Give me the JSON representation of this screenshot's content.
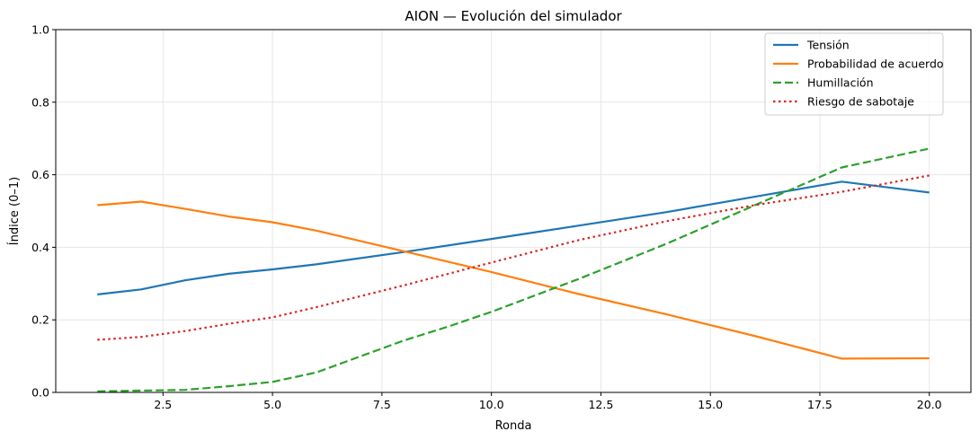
{
  "chart_data": {
    "type": "line",
    "title": "AION — Evolución del simulador",
    "xlabel": "Ronda",
    "ylabel": "Índice (0–1)",
    "xlim": [
      0.05,
      20.95
    ],
    "ylim": [
      0.0,
      1.0
    ],
    "grid": true,
    "legend_position": "top-right",
    "x_ticks": [
      2.5,
      5.0,
      7.5,
      10.0,
      12.5,
      15.0,
      17.5,
      20.0
    ],
    "x_tick_labels": [
      "2.5",
      "5.0",
      "7.5",
      "10.0",
      "12.5",
      "15.0",
      "17.5",
      "20.0"
    ],
    "y_ticks": [
      0.0,
      0.2,
      0.4,
      0.6,
      0.8,
      1.0
    ],
    "y_tick_labels": [
      "0.0",
      "0.2",
      "0.4",
      "0.6",
      "0.8",
      "1.0"
    ],
    "series": [
      {
        "name": "Tensión",
        "color": "#1f77b4",
        "style": "solid",
        "x": [
          1,
          2,
          3,
          4,
          5,
          6,
          8,
          10,
          12,
          14,
          16,
          18,
          20
        ],
        "y": [
          0.27,
          0.284,
          0.309,
          0.327,
          0.339,
          0.353,
          0.387,
          0.423,
          0.46,
          0.497,
          0.539,
          0.581,
          0.551
        ]
      },
      {
        "name": "Probabilidad de acuerdo",
        "color": "#ff7f0e",
        "style": "solid",
        "x": [
          1,
          2,
          3,
          4,
          5,
          6,
          8,
          10,
          12,
          14,
          16,
          18,
          20
        ],
        "y": [
          0.516,
          0.526,
          0.506,
          0.485,
          0.469,
          0.446,
          0.389,
          0.332,
          0.271,
          0.215,
          0.156,
          0.093,
          0.094
        ]
      },
      {
        "name": "Humillación",
        "color": "#2ca02c",
        "style": "dashed",
        "x": [
          1,
          2,
          3,
          4,
          5,
          6,
          7,
          8,
          9,
          10,
          12,
          14,
          16,
          18,
          20
        ],
        "y": [
          0.003,
          0.005,
          0.007,
          0.017,
          0.029,
          0.055,
          0.099,
          0.143,
          0.181,
          0.222,
          0.313,
          0.41,
          0.515,
          0.62,
          0.672
        ]
      },
      {
        "name": "Riesgo de sabotaje",
        "color": "#d62728",
        "style": "dotted",
        "x": [
          1,
          2,
          3,
          4,
          5,
          6,
          8,
          10,
          12,
          14,
          16,
          18,
          20
        ],
        "y": [
          0.145,
          0.153,
          0.169,
          0.189,
          0.207,
          0.235,
          0.295,
          0.358,
          0.42,
          0.472,
          0.516,
          0.553,
          0.598
        ]
      }
    ]
  }
}
